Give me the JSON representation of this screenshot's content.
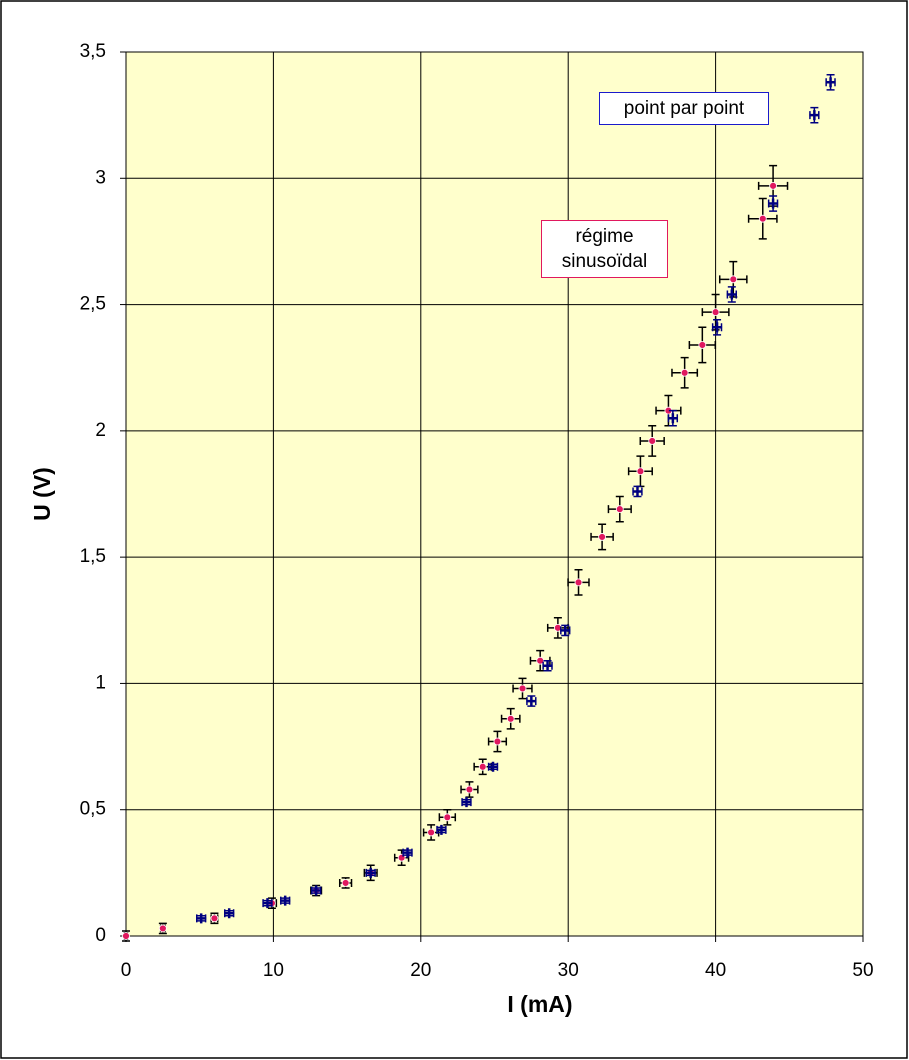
{
  "chart_data": {
    "type": "errorbar-scatter",
    "xlabel": "I  (mA)",
    "ylabel": "U  (V)",
    "xlim": [
      0,
      50
    ],
    "ylim": [
      0,
      3.5
    ],
    "xticks": [
      0,
      10,
      20,
      30,
      40,
      50
    ],
    "yticks": [
      0,
      {
        "value": 0.5,
        "label": "0,5"
      },
      1,
      {
        "value": 1.5,
        "label": "1,5"
      },
      2,
      {
        "value": 2.5,
        "label": "2,5"
      },
      3,
      {
        "value": 3.5,
        "label": "3,5"
      }
    ],
    "grid": true,
    "background": "#ffffcc",
    "series": [
      {
        "name": "régime sinusoïdal",
        "color": "#e0185e",
        "errcolor": "#000000",
        "marker": "circle",
        "x": [
          0,
          2.5,
          6.0,
          9.9,
          12.9,
          14.9,
          16.6,
          18.7,
          20.7,
          21.8,
          23.3,
          24.2,
          25.2,
          26.1,
          26.9,
          28.1,
          29.3,
          30.7,
          32.3,
          33.5,
          34.9,
          35.7,
          36.8,
          37.9,
          39.1,
          40.0,
          41.2,
          43.2,
          43.9
        ],
        "values": [
          0,
          0.03,
          0.07,
          0.13,
          0.18,
          0.21,
          0.25,
          0.31,
          0.41,
          0.47,
          0.58,
          0.67,
          0.77,
          0.86,
          0.98,
          1.09,
          1.22,
          1.4,
          1.58,
          1.69,
          1.84,
          1.96,
          2.08,
          2.23,
          2.34,
          2.47,
          2.6,
          2.84,
          2.97
        ],
        "xerr": [
          0.1,
          0.15,
          0.22,
          0.3,
          0.36,
          0.4,
          0.43,
          0.47,
          0.51,
          0.54,
          0.57,
          0.58,
          0.6,
          0.62,
          0.64,
          0.66,
          0.69,
          0.71,
          0.75,
          0.77,
          0.8,
          0.81,
          0.84,
          0.86,
          0.88,
          0.9,
          0.92,
          0.96,
          0.98
        ],
        "yerr": [
          0.02,
          0.02,
          0.02,
          0.02,
          0.02,
          0.02,
          0.03,
          0.03,
          0.03,
          0.03,
          0.03,
          0.03,
          0.04,
          0.04,
          0.04,
          0.04,
          0.04,
          0.05,
          0.05,
          0.05,
          0.06,
          0.06,
          0.06,
          0.06,
          0.07,
          0.07,
          0.07,
          0.08,
          0.08
        ]
      },
      {
        "name": "point par point",
        "color": "#000080",
        "errcolor": "#000080",
        "marker": "plus",
        "x": [
          5.1,
          7.0,
          9.6,
          10.8,
          12.9,
          16.6,
          19.1,
          21.4,
          23.1,
          24.9,
          27.5,
          28.6,
          29.8,
          34.7,
          37.1,
          40.1,
          41.1,
          43.9,
          46.7,
          47.8
        ],
        "values": [
          0.07,
          0.09,
          0.13,
          0.14,
          0.18,
          0.25,
          0.33,
          0.42,
          0.53,
          0.67,
          0.93,
          1.07,
          1.21,
          1.76,
          2.05,
          2.41,
          2.54,
          2.9,
          3.25,
          3.38
        ],
        "xerr": [
          0.3,
          0.3,
          0.3,
          0.3,
          0.3,
          0.3,
          0.3,
          0.3,
          0.3,
          0.3,
          0.3,
          0.3,
          0.3,
          0.3,
          0.3,
          0.3,
          0.3,
          0.3,
          0.3,
          0.3
        ],
        "yerr": [
          0.01,
          0.01,
          0.01,
          0.01,
          0.01,
          0.01,
          0.01,
          0.01,
          0.01,
          0.01,
          0.02,
          0.02,
          0.02,
          0.02,
          0.03,
          0.03,
          0.03,
          0.03,
          0.03,
          0.03
        ]
      }
    ]
  }
}
